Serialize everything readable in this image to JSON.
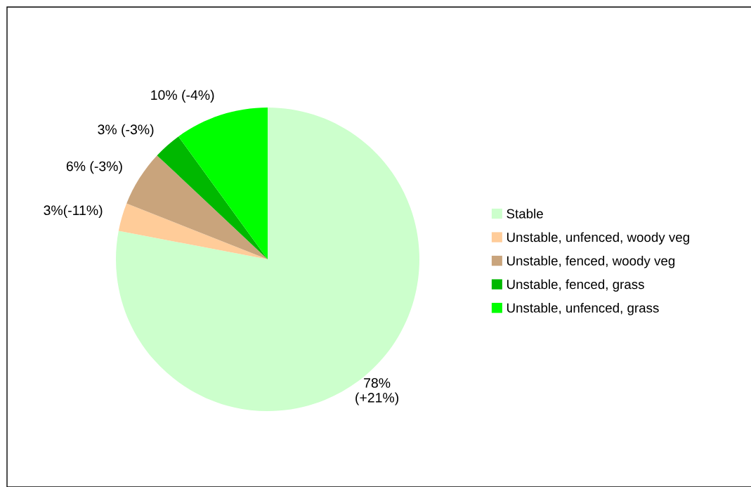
{
  "chart_data": {
    "type": "pie",
    "categories": [
      "Stable",
      "Unstable, unfenced, woody veg",
      "Unstable, fenced, woody veg",
      "Unstable, fenced, grass",
      "Unstable, unfenced, grass"
    ],
    "values": [
      78,
      3,
      6,
      3,
      10
    ],
    "colors": [
      "#ccffcc",
      "#ffcc99",
      "#c9a47c",
      "#00b800",
      "#00ff00"
    ],
    "value_labels": [
      "78%\n(+21%)",
      "3%(-11%)",
      "6% (-3%)",
      "3% (-3%)",
      "10% (-4%)"
    ],
    "legend": "right"
  }
}
